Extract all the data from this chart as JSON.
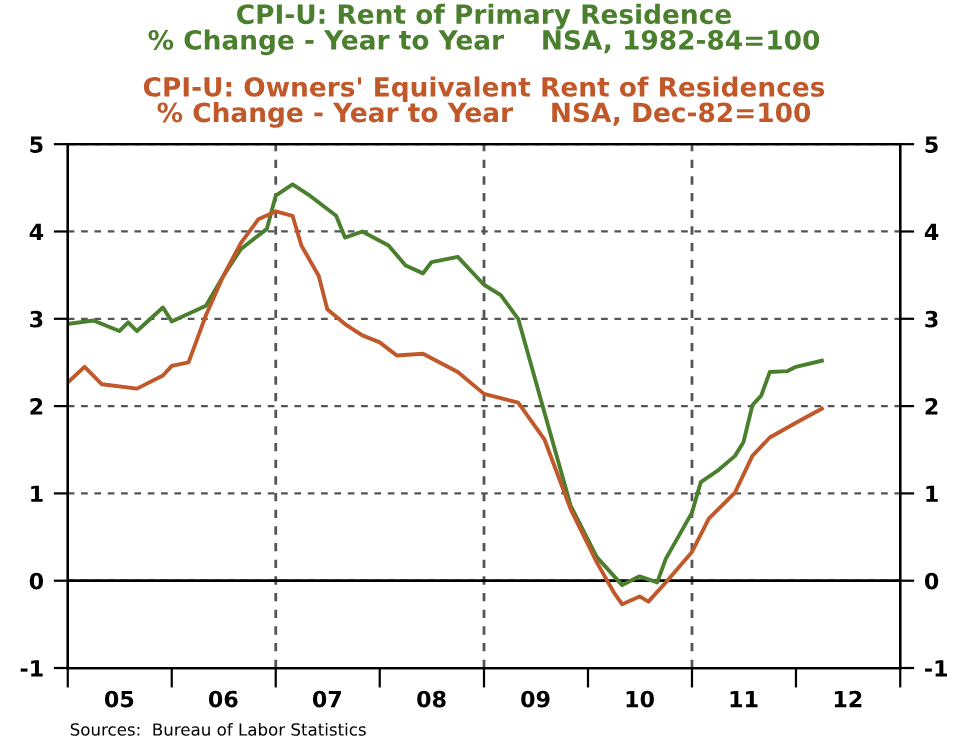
{
  "chart_data": {
    "type": "line",
    "series": [
      {
        "name": "CPI-U: Rent of Primary Residence\n% Change - Year to Year    NSA, 1982-84=100",
        "color": "#4a7f2e",
        "x": [
          "2005-01",
          "2005-04",
          "2005-07",
          "2005-08",
          "2005-09",
          "2005-12",
          "2006-01",
          "2006-05",
          "2006-07",
          "2006-09",
          "2006-12",
          "2007-01",
          "2007-03",
          "2007-05",
          "2007-08",
          "2007-09",
          "2007-11",
          "2008-02",
          "2008-04",
          "2008-06",
          "2008-07",
          "2008-10",
          "2009-01",
          "2009-03",
          "2009-05",
          "2009-08",
          "2009-11",
          "2010-02",
          "2010-05",
          "2010-07",
          "2010-09",
          "2010-10",
          "2011-01",
          "2011-02",
          "2011-04",
          "2011-06",
          "2011-07",
          "2011-08",
          "2011-09",
          "2011-10",
          "2011-12",
          "2012-01",
          "2012-04"
        ],
        "values": [
          2.94,
          2.98,
          2.86,
          2.96,
          2.86,
          3.13,
          2.97,
          3.15,
          3.49,
          3.8,
          4.03,
          4.41,
          4.54,
          4.41,
          4.18,
          3.93,
          4.0,
          3.84,
          3.61,
          3.52,
          3.65,
          3.71,
          3.39,
          3.27,
          3.0,
          1.93,
          0.86,
          0.27,
          -0.05,
          0.05,
          -0.02,
          0.25,
          0.78,
          1.13,
          1.26,
          1.43,
          1.59,
          2.01,
          2.12,
          2.39,
          2.4,
          2.45,
          2.52
        ]
      },
      {
        "name": "CPI-U: Owners' Equivalent Rent of Residences\n% Change - Year to Year    NSA, Dec-82=100",
        "color": "#c0582a",
        "x": [
          "2005-01",
          "2005-03",
          "2005-05",
          "2005-09",
          "2005-12",
          "2006-01",
          "2006-03",
          "2006-05",
          "2006-07",
          "2006-09",
          "2006-11",
          "2007-01",
          "2007-03",
          "2007-04",
          "2007-06",
          "2007-07",
          "2007-09",
          "2007-11",
          "2008-01",
          "2008-03",
          "2008-06",
          "2008-10",
          "2009-01",
          "2009-05",
          "2009-08",
          "2009-11",
          "2010-02",
          "2010-04",
          "2010-05",
          "2010-07",
          "2010-08",
          "2010-10",
          "2011-01",
          "2011-03",
          "2011-06",
          "2011-08",
          "2011-10",
          "2012-01",
          "2012-04"
        ],
        "values": [
          2.27,
          2.45,
          2.25,
          2.2,
          2.35,
          2.46,
          2.5,
          3.04,
          3.49,
          3.87,
          4.14,
          4.23,
          4.18,
          3.84,
          3.49,
          3.11,
          2.94,
          2.81,
          2.73,
          2.58,
          2.6,
          2.39,
          2.14,
          2.04,
          1.62,
          0.82,
          0.21,
          -0.13,
          -0.27,
          -0.18,
          -0.24,
          -0.02,
          0.33,
          0.71,
          1.01,
          1.43,
          1.64,
          1.81,
          1.97
        ]
      }
    ],
    "xlim": [
      "2005-01-01",
      "2013-01-01"
    ],
    "xticks": [
      {
        "value": "2005-01-01",
        "label": null
      },
      {
        "value": "2005-07-01",
        "label": "05"
      },
      {
        "value": "2006-01-01",
        "label": null
      },
      {
        "value": "2006-07-01",
        "label": "06"
      },
      {
        "value": "2007-01-01",
        "label": null
      },
      {
        "value": "2007-07-01",
        "label": "07"
      },
      {
        "value": "2008-01-01",
        "label": null
      },
      {
        "value": "2008-07-01",
        "label": "08"
      },
      {
        "value": "2009-01-01",
        "label": null
      },
      {
        "value": "2009-07-01",
        "label": "09"
      },
      {
        "value": "2010-01-01",
        "label": null
      },
      {
        "value": "2010-07-01",
        "label": "10"
      },
      {
        "value": "2011-01-01",
        "label": null
      },
      {
        "value": "2011-07-01",
        "label": "11"
      },
      {
        "value": "2012-01-01",
        "label": null
      },
      {
        "value": "2012-07-01",
        "label": "12"
      },
      {
        "value": "2013-01-01",
        "label": null
      }
    ],
    "ylim": [
      -1,
      5
    ],
    "yticks": [
      -1,
      0,
      1,
      2,
      3,
      4,
      5
    ],
    "y2lim": [
      -1,
      5
    ],
    "y2ticks": [
      -1,
      0,
      1,
      2,
      3,
      4,
      5
    ],
    "grid": "y",
    "ref_lines": [
      {
        "axis": "x",
        "value": "2007-01-01",
        "line_style": "dashed",
        "color": "#555555"
      },
      {
        "axis": "x",
        "value": "2009-01-01",
        "line_style": "dashed",
        "color": "#555555"
      },
      {
        "axis": "x",
        "value": "2011-01-01",
        "line_style": "dashed",
        "color": "#555555"
      },
      {
        "axis": "y",
        "value": 0,
        "line_style": "solid",
        "color": "#000000"
      }
    ],
    "legend": "top",
    "annotations": [
      "Sources:  Bureau of Labor Statistics"
    ]
  }
}
